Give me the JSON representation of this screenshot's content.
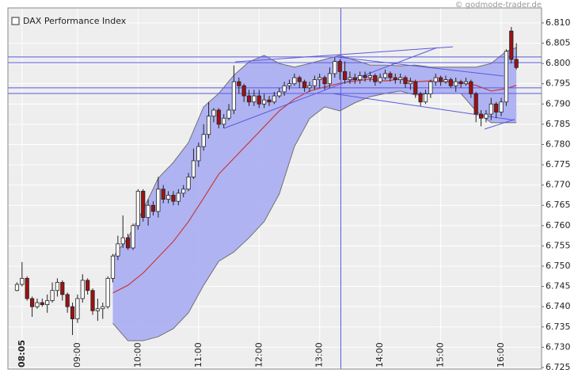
{
  "chart_data": {
    "type": "candlestick",
    "title": "DAX Performance Index",
    "source": "© godmode-trader.de",
    "x": [
      480,
      485,
      490,
      495,
      500,
      505,
      510,
      515,
      520,
      525,
      530,
      535,
      540,
      545,
      550,
      555,
      560,
      565,
      570,
      575,
      580,
      585,
      590,
      595,
      600,
      605,
      610,
      615,
      620,
      625,
      630,
      635,
      640,
      645,
      650,
      655,
      660,
      665,
      670,
      675,
      680,
      685,
      690,
      695,
      700,
      705,
      710,
      715,
      720,
      725,
      730,
      735,
      740,
      745,
      750,
      755,
      760,
      765,
      770,
      775,
      780,
      785,
      790,
      795,
      800,
      805,
      810,
      815,
      820,
      825,
      830,
      835,
      840,
      845,
      850,
      855,
      860,
      865,
      870,
      875,
      880,
      885,
      890,
      895,
      900,
      905,
      910,
      915,
      920,
      925,
      930,
      935,
      940,
      945,
      950,
      955,
      960,
      965,
      970,
      975
    ],
    "open": [
      6.744,
      6.7455,
      6.747,
      6.742,
      6.74,
      6.741,
      6.7405,
      6.7415,
      6.744,
      6.746,
      6.743,
      6.74,
      6.737,
      6.742,
      6.7465,
      6.744,
      6.739,
      6.7395,
      6.74,
      6.747,
      6.7525,
      6.7555,
      6.757,
      6.7545,
      6.76,
      6.7685,
      6.762,
      6.765,
      6.7635,
      6.769,
      6.7665,
      6.7675,
      6.766,
      6.768,
      6.769,
      6.772,
      6.776,
      6.7795,
      6.7825,
      6.787,
      6.7885,
      6.785,
      6.7865,
      6.7885,
      6.7955,
      6.7945,
      6.792,
      6.7905,
      6.792,
      6.79,
      6.791,
      6.7905,
      6.792,
      6.793,
      6.7945,
      6.795,
      6.7965,
      6.7955,
      6.794,
      6.7945,
      6.796,
      6.7965,
      6.795,
      6.7975,
      6.8005,
      6.798,
      6.796,
      6.7965,
      6.796,
      6.797,
      6.7965,
      6.797,
      6.7955,
      6.7965,
      6.7975,
      6.7965,
      6.796,
      6.7965,
      6.795,
      6.7955,
      6.7925,
      6.7905,
      6.7925,
      6.7955,
      6.7965,
      6.7955,
      6.796,
      6.7945,
      6.7955,
      6.795,
      6.7955,
      6.7925,
      6.7875,
      6.7865,
      6.7875,
      6.79,
      6.788,
      6.7905,
      6.808,
      6.801
    ],
    "high": [
      6.746,
      6.751,
      6.7475,
      6.7425,
      6.742,
      6.742,
      6.743,
      6.746,
      6.747,
      6.7465,
      6.7435,
      6.741,
      6.743,
      6.748,
      6.747,
      6.7445,
      6.742,
      6.741,
      6.7475,
      6.753,
      6.7575,
      6.7625,
      6.758,
      6.7605,
      6.769,
      6.769,
      6.7665,
      6.766,
      6.772,
      6.77,
      6.7685,
      6.7685,
      6.769,
      6.77,
      6.773,
      6.779,
      6.7805,
      6.785,
      6.7905,
      6.789,
      6.789,
      6.7875,
      6.79,
      6.7995,
      6.7965,
      6.795,
      6.7935,
      6.7935,
      6.7935,
      6.7925,
      6.792,
      6.793,
      6.794,
      6.7955,
      6.796,
      6.7975,
      6.797,
      6.796,
      6.7955,
      6.797,
      6.7975,
      6.797,
      6.799,
      6.8015,
      6.801,
      6.8005,
      6.798,
      6.7975,
      6.798,
      6.798,
      6.798,
      6.7975,
      6.7975,
      6.7985,
      6.798,
      6.7975,
      6.7975,
      6.797,
      6.7965,
      6.796,
      6.793,
      6.7935,
      6.796,
      6.7975,
      6.797,
      6.797,
      6.7965,
      6.7965,
      6.796,
      6.7965,
      6.796,
      6.793,
      6.7885,
      6.7885,
      6.7915,
      6.7905,
      6.7915,
      6.8035,
      6.809,
      6.805
    ],
    "low": [
      6.7438,
      6.745,
      6.7415,
      6.7375,
      6.7395,
      6.74,
      6.7385,
      6.741,
      6.7425,
      6.7415,
      6.7385,
      6.733,
      6.736,
      6.741,
      6.743,
      6.738,
      6.7365,
      6.737,
      6.7395,
      6.746,
      6.7515,
      6.7545,
      6.754,
      6.754,
      6.759,
      6.761,
      6.76,
      6.7625,
      6.762,
      6.7655,
      6.7655,
      6.765,
      6.765,
      6.767,
      6.7685,
      6.7715,
      6.7745,
      6.7785,
      6.7815,
      6.7855,
      6.784,
      6.784,
      6.786,
      6.7875,
      6.7925,
      6.7905,
      6.7895,
      6.7895,
      6.789,
      6.789,
      6.7895,
      6.79,
      6.7915,
      6.792,
      6.7935,
      6.7945,
      6.794,
      6.793,
      6.793,
      6.7935,
      6.794,
      6.7935,
      6.794,
      6.7965,
      6.796,
      6.795,
      6.795,
      6.795,
      6.795,
      6.7955,
      6.7955,
      6.7945,
      6.795,
      6.796,
      6.7955,
      6.795,
      6.795,
      6.794,
      6.7935,
      6.7915,
      6.7895,
      6.79,
      6.7915,
      6.7945,
      6.7945,
      6.795,
      6.794,
      6.793,
      6.794,
      6.7945,
      6.7915,
      6.7855,
      6.7845,
      6.7855,
      6.786,
      6.7865,
      6.787,
      6.7895,
      6.8,
      6.7985
    ],
    "close": [
      6.7455,
      6.747,
      6.742,
      6.74,
      6.741,
      6.7405,
      6.7415,
      6.744,
      6.746,
      6.743,
      6.74,
      6.737,
      6.742,
      6.7465,
      6.744,
      6.739,
      6.7395,
      6.74,
      6.747,
      6.7525,
      6.7555,
      6.757,
      6.7545,
      6.76,
      6.7685,
      6.762,
      6.765,
      6.7635,
      6.769,
      6.7665,
      6.7675,
      6.766,
      6.768,
      6.769,
      6.772,
      6.776,
      6.7795,
      6.7825,
      6.787,
      6.7885,
      6.785,
      6.7865,
      6.7885,
      6.7955,
      6.7945,
      6.792,
      6.7905,
      6.792,
      6.79,
      6.791,
      6.7905,
      6.792,
      6.793,
      6.7945,
      6.795,
      6.7965,
      6.7955,
      6.794,
      6.7945,
      6.796,
      6.7965,
      6.795,
      6.7975,
      6.8005,
      6.798,
      6.796,
      6.7965,
      6.796,
      6.797,
      6.7965,
      6.797,
      6.7955,
      6.7965,
      6.7975,
      6.7965,
      6.796,
      6.7965,
      6.795,
      6.7955,
      6.7925,
      6.7905,
      6.7925,
      6.7955,
      6.7965,
      6.7955,
      6.796,
      6.7945,
      6.7955,
      6.795,
      6.7955,
      6.7925,
      6.7875,
      6.7865,
      6.7875,
      6.79,
      6.788,
      6.7905,
      6.803,
      6.801,
      6.799
    ],
    "up_color": "#ffffff",
    "down_color": "#a01010",
    "bands": {
      "x": [
        575,
        590,
        605,
        620,
        635,
        650,
        665,
        680,
        695,
        710,
        725,
        740,
        755,
        770,
        785,
        800,
        815,
        830,
        845,
        860,
        875,
        890,
        905,
        920,
        935,
        950,
        965,
        975
      ],
      "upper": [
        6.7522,
        6.757,
        6.7639,
        6.7717,
        6.7756,
        6.7805,
        6.7893,
        6.7926,
        6.7971,
        6.8004,
        6.802,
        6.8,
        6.7991,
        6.8,
        6.801,
        6.802,
        6.8008,
        6.7996,
        6.7996,
        6.7994,
        6.7996,
        6.7991,
        6.7991,
        6.7991,
        6.7991,
        6.8,
        6.803,
        6.8039
      ],
      "lower": [
        6.7359,
        6.7316,
        6.7316,
        6.7326,
        6.7346,
        6.7385,
        6.7453,
        6.7512,
        6.7535,
        6.757,
        6.761,
        6.7678,
        6.7795,
        6.7864,
        6.7893,
        6.7883,
        6.7903,
        6.7918,
        6.7926,
        6.7932,
        6.7922,
        6.7926,
        6.7926,
        6.7926,
        6.7883,
        6.7854,
        6.7854,
        6.7854
      ],
      "middle": [
        6.7434,
        6.7453,
        6.7483,
        6.7522,
        6.7561,
        6.761,
        6.7668,
        6.7727,
        6.7766,
        6.7805,
        6.7844,
        6.7883,
        6.7912,
        6.7932,
        6.7942,
        6.7951,
        6.7957,
        6.7961,
        6.7957,
        6.7961,
        6.7955,
        6.7957,
        6.7955,
        6.7953,
        6.7946,
        6.7932,
        6.7938,
        6.7946
      ],
      "fill": "#a9acf2",
      "line_color": "#707070",
      "middle_color": "#c83a3a"
    },
    "hlines": [
      6.8016,
      6.8002,
      6.794,
      6.7926
    ],
    "vline": 801,
    "trendlines": [
      {
        "x": [
          685.2,
          896.4
        ],
        "y": [
          6.784,
          6.8039
        ]
      },
      {
        "x": [
          696.2,
          912.1
        ],
        "y": [
          6.8004,
          6.8041
        ]
      },
      {
        "x": [
          796.7,
          962.3
        ],
        "y": [
          6.8016,
          6.7969
        ]
      },
      {
        "x": [
          792.7,
          973.3
        ],
        "y": [
          6.7926,
          6.786
        ]
      },
      {
        "x": [
          943.5,
          973.3
        ],
        "y": [
          6.7838,
          6.7862
        ]
      }
    ],
    "annotation_color": "#5a5ae0",
    "xlim": [
      471,
      1000
    ],
    "ylim": [
      6.7246,
      6.8137
    ],
    "xticks": [
      {
        "value": 485,
        "label": "08:05"
      },
      {
        "value": 540,
        "label": "09:00"
      },
      {
        "value": 600,
        "label": "10:00"
      },
      {
        "value": 660,
        "label": "11:00"
      },
      {
        "value": 720,
        "label": "12:00"
      },
      {
        "value": 780,
        "label": "13:00"
      },
      {
        "value": 840,
        "label": "14:00"
      },
      {
        "value": 900,
        "label": "15:00"
      },
      {
        "value": 960,
        "label": "16:00"
      }
    ],
    "yticks": [
      6.725,
      {
        "value": 6.73,
        "label": "6.730"
      },
      6.735,
      {
        "value": 6.74,
        "label": "6.740"
      },
      6.745,
      {
        "value": 6.75,
        "label": "6.750"
      },
      6.755,
      {
        "value": 6.76,
        "label": "6.760"
      },
      6.765,
      {
        "value": 6.77,
        "label": "6.770"
      },
      6.775,
      {
        "value": 6.78,
        "label": "6.780"
      },
      6.785,
      {
        "value": 6.79,
        "label": "6.790"
      },
      6.795,
      {
        "value": 6.8,
        "label": "6.800"
      },
      6.805,
      {
        "value": 6.81,
        "label": "6.810"
      }
    ],
    "grid": true
  }
}
